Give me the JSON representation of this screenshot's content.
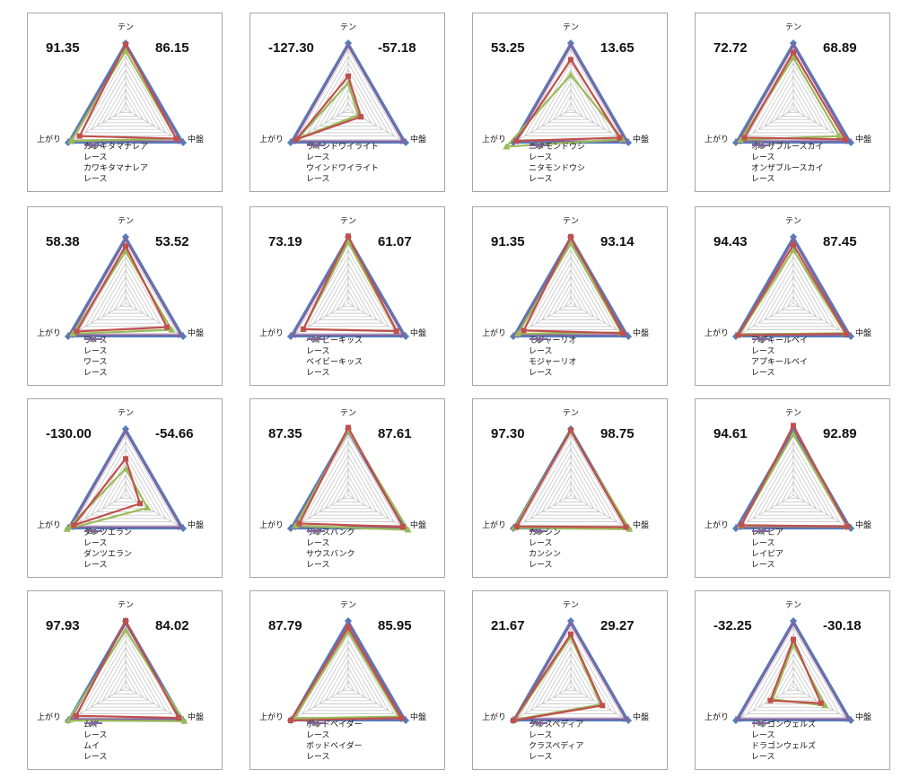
{
  "colors": {
    "s1": "#c0504d",
    "s2": "#4f81bd",
    "s3": "#9bbb59",
    "s4": "#8064a2",
    "grid": "#bfbfbf"
  },
  "axes": [
    "テン",
    "中盤",
    "上がり"
  ],
  "panels": [
    {
      "left": "91.35",
      "right": "86.15",
      "chart_data": {
        "type": "radar",
        "axes": [
          "テン",
          "中盤",
          "上がり"
        ],
        "range": [
          0,
          100
        ],
        "series": [
          {
            "name": "カワキタマナレア",
            "values": [
              98,
              88,
              80
            ]
          },
          {
            "name": "レース",
            "values": [
              100,
              100,
              100
            ]
          },
          {
            "name": "カワキタマナレア",
            "values": [
              88,
              88,
              95
            ]
          },
          {
            "name": "レース",
            "values": [
              96,
              96,
              96
            ]
          }
        ]
      }
    },
    {
      "left": "-127.30",
      "right": "-57.18",
      "chart_data": {
        "type": "radar",
        "axes": [
          "テン",
          "中盤",
          "上がり"
        ],
        "range": [
          0,
          100
        ],
        "series": [
          {
            "name": "ウインドワイライト",
            "values": [
              50,
              22,
              90
            ]
          },
          {
            "name": "レース",
            "values": [
              100,
              100,
              100
            ]
          },
          {
            "name": "ウインドワイライト",
            "values": [
              40,
              17,
              88
            ]
          },
          {
            "name": "レース",
            "values": [
              96,
              96,
              96
            ]
          }
        ]
      }
    },
    {
      "left": "53.25",
      "right": "13.65",
      "chart_data": {
        "type": "radar",
        "axes": [
          "テン",
          "中盤",
          "上がり"
        ],
        "range": [
          0,
          100
        ],
        "series": [
          {
            "name": "ニタモンドウシ",
            "values": [
              75,
              85,
              95
            ]
          },
          {
            "name": "レース",
            "values": [
              100,
              100,
              100
            ]
          },
          {
            "name": "ニタモンドウシ",
            "values": [
              52,
              90,
              112
            ]
          },
          {
            "name": "レース",
            "values": [
              96,
              96,
              96
            ]
          }
        ]
      }
    },
    {
      "left": "72.72",
      "right": "68.89",
      "chart_data": {
        "type": "radar",
        "axes": [
          "テン",
          "中盤",
          "上がり"
        ],
        "range": [
          0,
          100
        ],
        "series": [
          {
            "name": "オンザブルースカイ",
            "values": [
              86,
              90,
              85
            ]
          },
          {
            "name": "レース",
            "values": [
              100,
              100,
              100
            ]
          },
          {
            "name": "オンザブルースカイ",
            "values": [
              78,
              80,
              92
            ]
          },
          {
            "name": "レース",
            "values": [
              96,
              96,
              96
            ]
          }
        ]
      }
    },
    {
      "left": "58.38",
      "right": "53.52",
      "chart_data": {
        "type": "radar",
        "axes": [
          "テン",
          "中盤",
          "上がり"
        ],
        "range": [
          0,
          100
        ],
        "series": [
          {
            "name": "ワース",
            "values": [
              86,
              72,
              85
            ]
          },
          {
            "name": "レース",
            "values": [
              100,
              100,
              100
            ]
          },
          {
            "name": "ワース",
            "values": [
              78,
              80,
              92
            ]
          },
          {
            "name": "レース",
            "values": [
              96,
              96,
              96
            ]
          }
        ]
      }
    },
    {
      "left": "73.19",
      "right": "61.07",
      "chart_data": {
        "type": "radar",
        "axes": [
          "テン",
          "中盤",
          "上がり"
        ],
        "range": [
          0,
          100
        ],
        "series": [
          {
            "name": "ベイビーキッス",
            "values": [
              101,
              84,
              78
            ]
          },
          {
            "name": "レース",
            "values": [
              100,
              100,
              100
            ]
          },
          {
            "name": "ベイビーキッス",
            "values": [
              92,
              84,
              78
            ]
          },
          {
            "name": "レース",
            "values": [
              96,
              96,
              96
            ]
          }
        ]
      }
    },
    {
      "left": "91.35",
      "right": "93.14",
      "chart_data": {
        "type": "radar",
        "axes": [
          "テン",
          "中盤",
          "上がり"
        ],
        "range": [
          0,
          100
        ],
        "series": [
          {
            "name": "モジャーリオ",
            "values": [
              100,
              90,
              82
            ]
          },
          {
            "name": "レース",
            "values": [
              100,
              100,
              100
            ]
          },
          {
            "name": "モジャーリオ",
            "values": [
              90,
              88,
              92
            ]
          },
          {
            "name": "レース",
            "values": [
              96,
              96,
              96
            ]
          }
        ]
      }
    },
    {
      "left": "94.43",
      "right": "87.45",
      "chart_data": {
        "type": "radar",
        "axes": [
          "テン",
          "中盤",
          "上がり"
        ],
        "range": [
          0,
          100
        ],
        "series": [
          {
            "name": "アプキールベイ",
            "values": [
              88,
              92,
              96
            ]
          },
          {
            "name": "レース",
            "values": [
              100,
              100,
              100
            ]
          },
          {
            "name": "アプキールベイ",
            "values": [
              80,
              90,
              94
            ]
          },
          {
            "name": "レース",
            "values": [
              96,
              96,
              96
            ]
          }
        ]
      }
    },
    {
      "left": "-130.00",
      "right": "-54.66",
      "chart_data": {
        "type": "radar",
        "axes": [
          "テン",
          "中盤",
          "上がり"
        ],
        "range": [
          0,
          100
        ],
        "series": [
          {
            "name": "ダンツエラン",
            "values": [
              55,
              25,
              90
            ]
          },
          {
            "name": "レース",
            "values": [
              100,
              100,
              100
            ]
          },
          {
            "name": "ダンツエラン",
            "values": [
              40,
              38,
              102
            ]
          },
          {
            "name": "レース",
            "values": [
              96,
              96,
              96
            ]
          }
        ]
      }
    },
    {
      "left": "87.35",
      "right": "87.61",
      "chart_data": {
        "type": "radar",
        "axes": [
          "テン",
          "中盤",
          "上がり"
        ],
        "range": [
          0,
          100
        ],
        "series": [
          {
            "name": "サウスバンク",
            "values": [
              102,
              95,
              85
            ]
          },
          {
            "name": "レース",
            "values": [
              100,
              100,
              100
            ]
          },
          {
            "name": "サウスバンク",
            "values": [
              98,
              104,
              92
            ]
          },
          {
            "name": "レース",
            "values": [
              96,
              96,
              96
            ]
          }
        ]
      }
    },
    {
      "left": "97.30",
      "right": "98.75",
      "chart_data": {
        "type": "radar",
        "axes": [
          "テン",
          "中盤",
          "上がり"
        ],
        "range": [
          0,
          100
        ],
        "series": [
          {
            "name": "カンシン",
            "values": [
              98,
              96,
              94
            ]
          },
          {
            "name": "レース",
            "values": [
              100,
              100,
              100
            ]
          },
          {
            "name": "カンシン",
            "values": [
              96,
              102,
              98
            ]
          },
          {
            "name": "レース",
            "values": [
              96,
              96,
              96
            ]
          }
        ]
      }
    },
    {
      "left": "94.61",
      "right": "92.89",
      "chart_data": {
        "type": "radar",
        "axes": [
          "テン",
          "中盤",
          "上がり"
        ],
        "range": [
          0,
          100
        ],
        "series": [
          {
            "name": "レイピア",
            "values": [
              105,
              94,
              90
            ]
          },
          {
            "name": "レース",
            "values": [
              100,
              100,
              100
            ]
          },
          {
            "name": "レイピア",
            "values": [
              92,
              94,
              92
            ]
          },
          {
            "name": "レース",
            "values": [
              96,
              96,
              96
            ]
          }
        ]
      }
    },
    {
      "left": "97.93",
      "right": "84.02",
      "chart_data": {
        "type": "radar",
        "axes": [
          "テン",
          "中盤",
          "上がり"
        ],
        "range": [
          0,
          100
        ],
        "series": [
          {
            "name": "ムイ",
            "values": [
              100,
              92,
              86
            ]
          },
          {
            "name": "レース",
            "values": [
              100,
              100,
              100
            ]
          },
          {
            "name": "ムイ",
            "values": [
              86,
              102,
              100
            ]
          },
          {
            "name": "レース",
            "values": [
              96,
              96,
              96
            ]
          }
        ]
      }
    },
    {
      "left": "87.79",
      "right": "85.95",
      "chart_data": {
        "type": "radar",
        "axes": [
          "テン",
          "中盤",
          "上がり"
        ],
        "range": [
          0,
          100
        ],
        "series": [
          {
            "name": "ボッドベイダー",
            "values": [
              90,
              92,
              100
            ]
          },
          {
            "name": "レース",
            "values": [
              100,
              100,
              100
            ]
          },
          {
            "name": "ボッドベイダー",
            "values": [
              84,
              88,
              94
            ]
          },
          {
            "name": "レース",
            "values": [
              96,
              96,
              96
            ]
          }
        ]
      }
    },
    {
      "left": "21.67",
      "right": "29.27",
      "chart_data": {
        "type": "radar",
        "axes": [
          "テン",
          "中盤",
          "上がり"
        ],
        "range": [
          0,
          100
        ],
        "series": [
          {
            "name": "クラスペディア",
            "values": [
              80,
              55,
              100
            ]
          },
          {
            "name": "レース",
            "values": [
              100,
              100,
              100
            ]
          },
          {
            "name": "クラスペディア",
            "values": [
              76,
              52,
              98
            ]
          },
          {
            "name": "レース",
            "values": [
              96,
              96,
              96
            ]
          }
        ]
      }
    },
    {
      "left": "-32.25",
      "right": "-30.18",
      "chart_data": {
        "type": "radar",
        "axes": [
          "テン",
          "中盤",
          "上がり"
        ],
        "range": [
          0,
          100
        ],
        "series": [
          {
            "name": "ドラゴンウェルズ",
            "values": [
              72,
              48,
              40
            ]
          },
          {
            "name": "レース",
            "values": [
              100,
              100,
              100
            ]
          },
          {
            "name": "ドラゴンウェルズ",
            "values": [
              65,
              55,
              36
            ]
          },
          {
            "name": "レース",
            "values": [
              96,
              96,
              96
            ]
          }
        ]
      }
    }
  ]
}
